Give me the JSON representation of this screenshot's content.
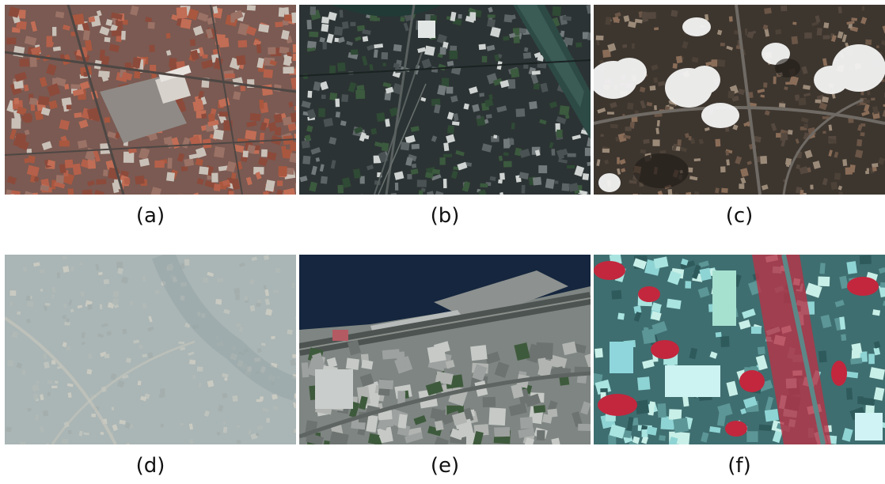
{
  "figure": {
    "panels": [
      {
        "id": "a",
        "caption": "(a)",
        "scene": "dense-red-roof-town",
        "palette": {
          "base": "#7a5a52",
          "roof": "#b5604a",
          "street": "#4e4744",
          "accent": "#c9c1b8"
        }
      },
      {
        "id": "b",
        "caption": "(b)",
        "scene": "dark-urban-with-river",
        "palette": {
          "base": "#2c3334",
          "roof": "#5d6466",
          "street": "#1b2222",
          "accent": "#cfd4d2"
        }
      },
      {
        "id": "c",
        "caption": "(c)",
        "scene": "urban-with-clouds",
        "palette": {
          "base": "#3d362f",
          "roof": "#6b5647",
          "street": "#2a2622",
          "accent": "#f2f2f2"
        }
      },
      {
        "id": "d",
        "caption": "(d)",
        "scene": "hazy-rural-settlement",
        "palette": {
          "base": "#9aa7a8",
          "roof": "#b8bcb4",
          "street": "#c3bfb2",
          "accent": "#7f8f92"
        }
      },
      {
        "id": "e",
        "caption": "(e)",
        "scene": "coastal-city-waterfront",
        "palette": {
          "base": "#7e8582",
          "roof": "#b1b4b1",
          "street": "#5e6461",
          "accent": "#15263e"
        }
      },
      {
        "id": "f",
        "caption": "(f)",
        "scene": "false-color-infrared-urban",
        "palette": {
          "base": "#3f6e70",
          "roof": "#8fd4d4",
          "street": "#4b7f80",
          "accent": "#c2273d"
        }
      }
    ]
  }
}
